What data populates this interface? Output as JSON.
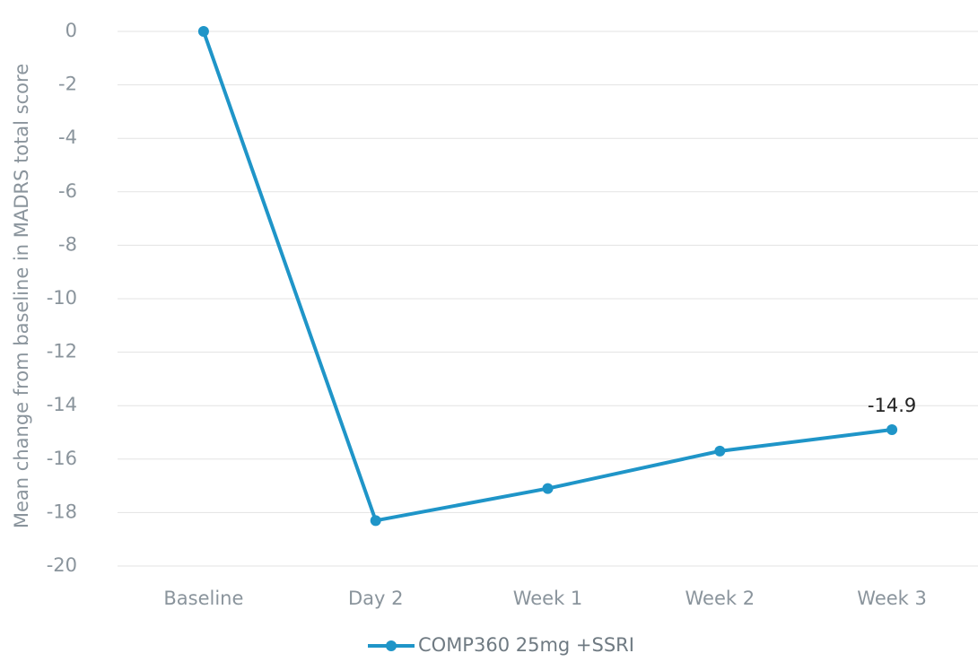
{
  "chart_data": {
    "type": "line",
    "y_label": "Mean change from baseline in MADRS total score",
    "categories": [
      "Baseline",
      "Day 2",
      "Week 1",
      "Week 2",
      "Week 3"
    ],
    "series": [
      {
        "name": "COMP360 25mg +SSRI",
        "color": "#1f95c8",
        "values": [
          0,
          -18.3,
          -17.1,
          -15.7,
          -14.9
        ]
      }
    ],
    "data_label": "last",
    "ylim": [
      -20,
      0
    ],
    "yticks": [
      0,
      -2,
      -4,
      -6,
      -8,
      -10,
      -12,
      -14,
      -16,
      -18,
      -20
    ],
    "grid": true,
    "legend": "bottom"
  }
}
